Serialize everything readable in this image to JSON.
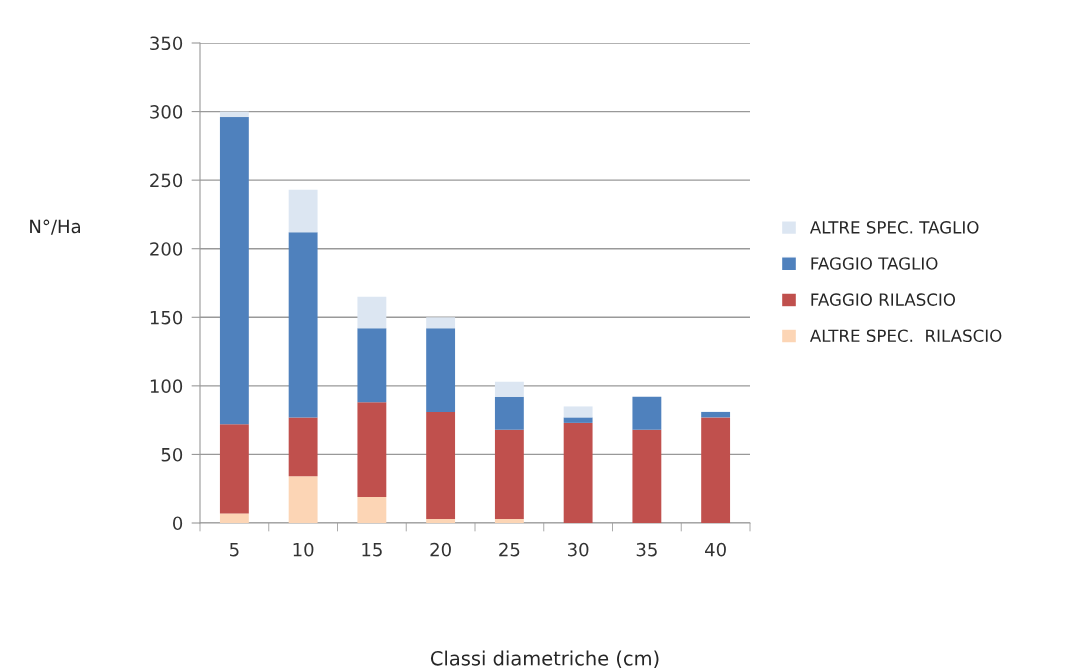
{
  "chart_data": {
    "type": "bar",
    "stacked": true,
    "categories": [
      "5",
      "10",
      "15",
      "20",
      "25",
      "30",
      "35",
      "40"
    ],
    "series": [
      {
        "name": "ALTRE SPEC.  RILASCIO",
        "color": "#fcd5b5",
        "values": [
          7,
          34,
          19,
          3,
          3,
          0,
          0,
          0
        ]
      },
      {
        "name": "FAGGIO RILASCIO",
        "color": "#c0504d",
        "values": [
          65,
          43,
          69,
          78,
          65,
          73,
          68,
          77
        ]
      },
      {
        "name": "FAGGIO TAGLIO",
        "color": "#4f81bd",
        "values": [
          224,
          135,
          54,
          61,
          24,
          4,
          24,
          4
        ]
      },
      {
        "name": "ALTRE SPEC. TAGLIO",
        "color": "#dce6f2",
        "values": [
          4,
          31,
          23,
          8,
          11,
          8,
          0,
          0
        ]
      }
    ],
    "ylim": [
      0,
      350
    ],
    "yticks": [
      0,
      50,
      100,
      150,
      200,
      250,
      300,
      350
    ],
    "xlabel": "Classi diametriche (cm)",
    "ylabel": "N°/Ha",
    "grid": "y",
    "legend": "right"
  }
}
